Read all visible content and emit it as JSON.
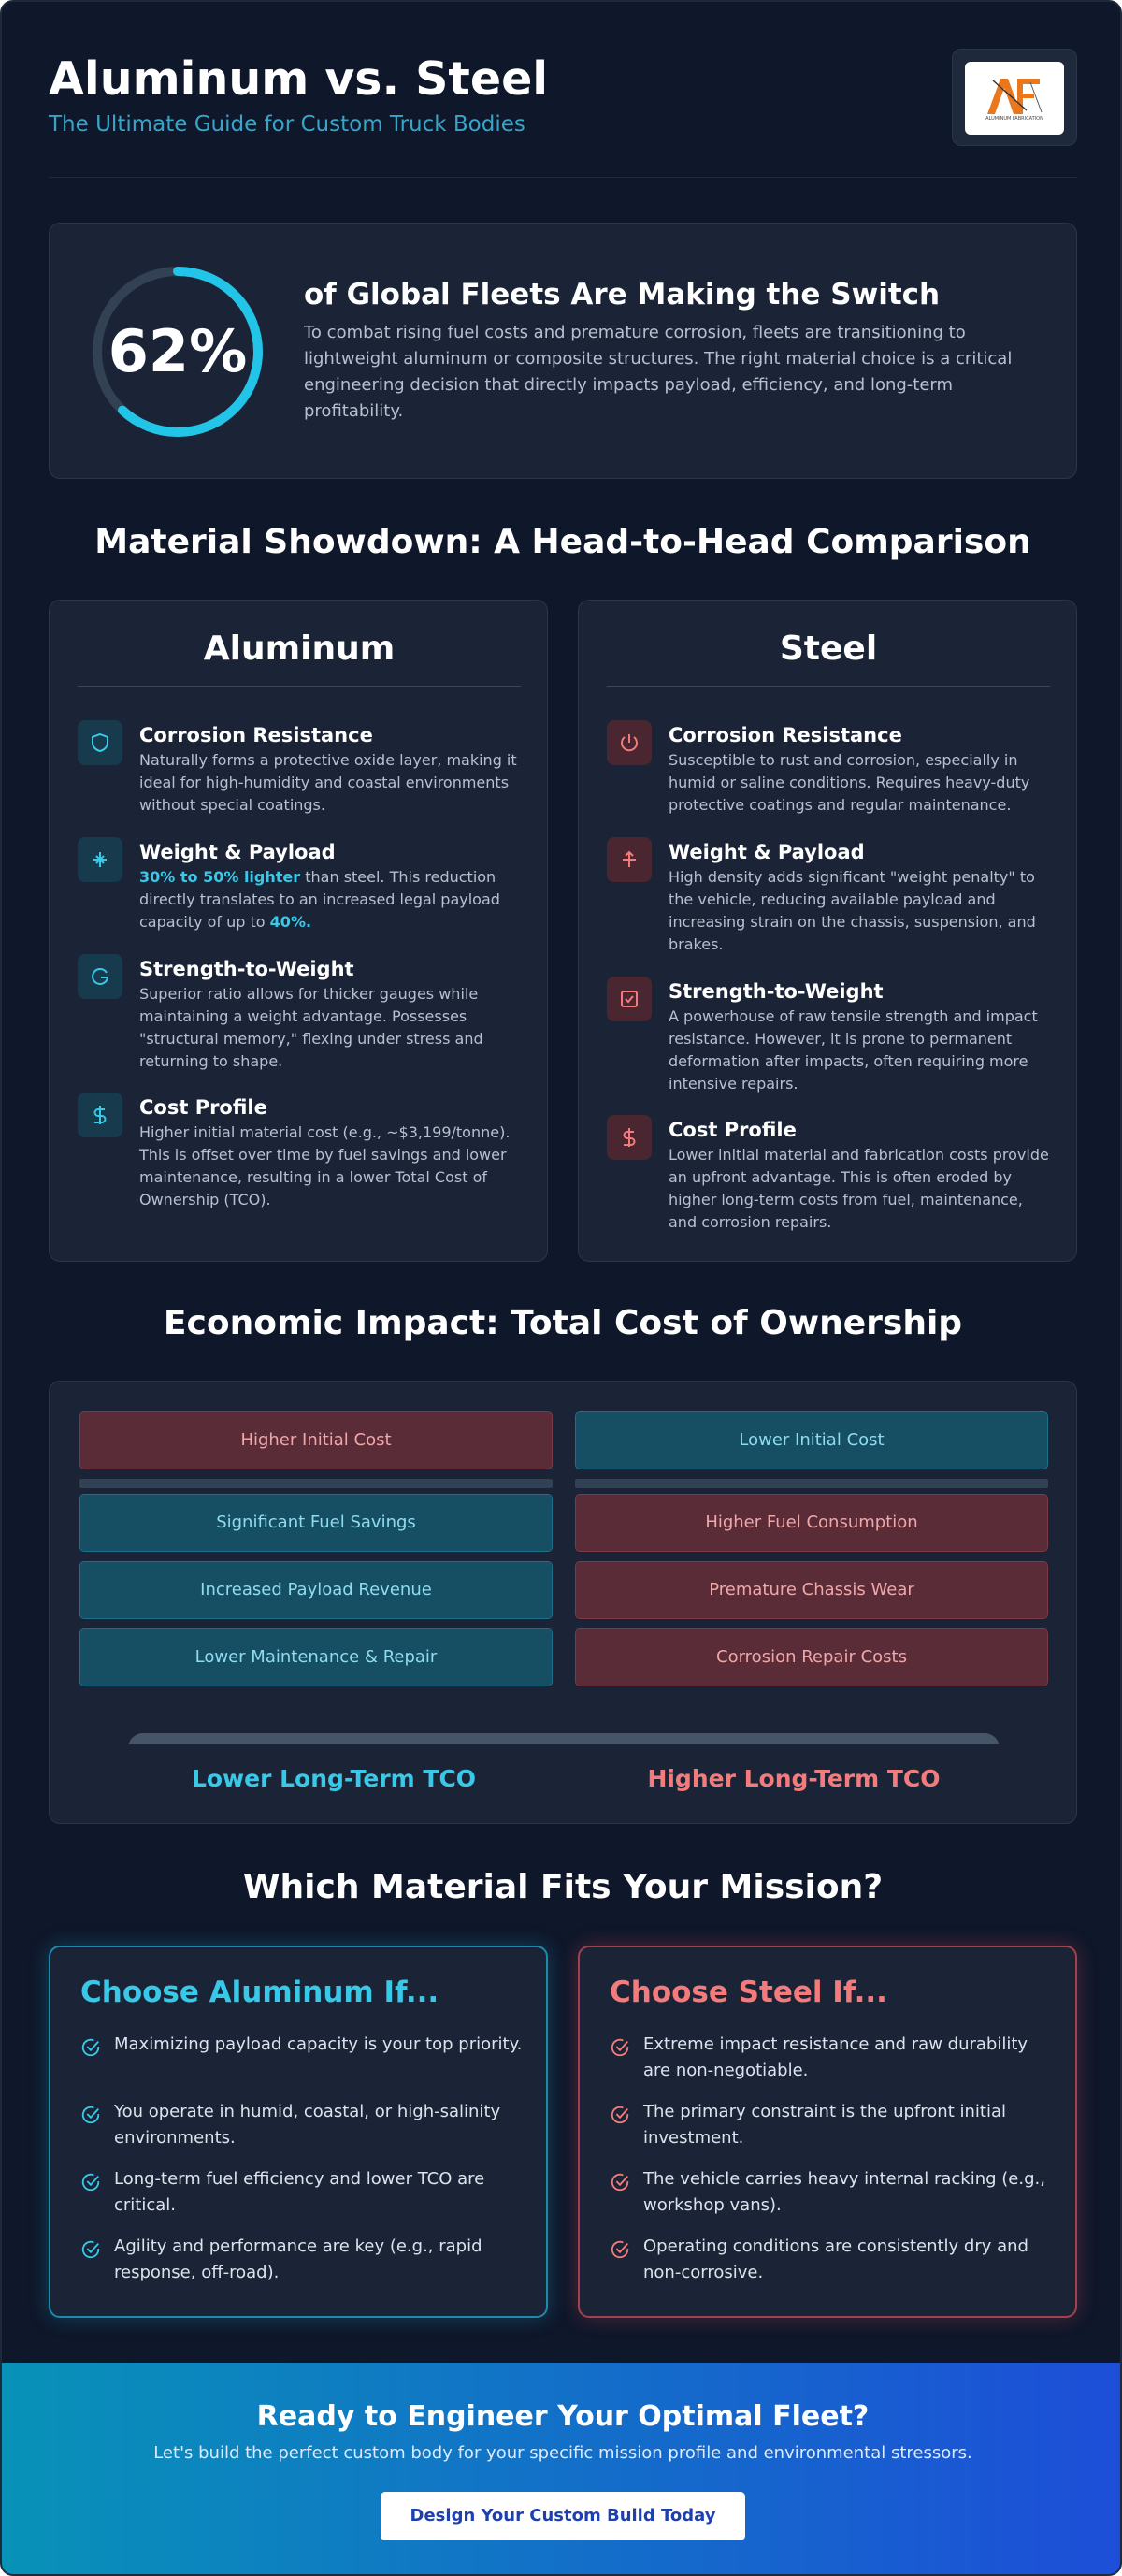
{
  "header": {
    "title": "Aluminum vs. Steel",
    "subtitle": "The Ultimate Guide for Custom Truck Bodies",
    "logo": {
      "text": "AF",
      "caption": "ALUMINUM FABRICATION"
    }
  },
  "stat": {
    "percent_label": "62%",
    "percent_value": 62,
    "headline": "of Global Fleets Are Making the Switch",
    "body": "To combat rising fuel costs and premature corrosion, fleets are transitioning to lightweight aluminum or composite structures. The right material choice is a critical engineering decision that directly impacts payload, efficiency, and long-term profitability."
  },
  "showdown": {
    "title": "Material Showdown: A Head-to-Head Comparison",
    "aluminum": {
      "title": "Aluminum",
      "features": [
        {
          "icon": "shield-icon",
          "title": "Corrosion Resistance",
          "text": "Naturally forms a protective oxide layer, making it ideal for high-humidity and coastal environments without special coatings."
        },
        {
          "icon": "feather-icon",
          "title": "Weight & Payload",
          "text_highlight": "30% to 50% lighter",
          "text_before": " than steel. This reduction directly translates to an increased legal payload capacity of up to ",
          "text_highlight2": "40%."
        },
        {
          "icon": "flex-icon",
          "title": "Strength-to-Weight",
          "text": "Superior ratio allows for thicker gauges while maintaining a weight advantage. Possesses \"structural memory,\" flexing under stress and returning to shape."
        },
        {
          "icon": "dollar-icon",
          "title": "Cost Profile",
          "text": "Higher initial material cost (e.g., ~$3,199/tonne). This is offset over time by fuel savings and lower maintenance, resulting in a lower Total Cost of Ownership (TCO)."
        }
      ]
    },
    "steel": {
      "title": "Steel",
      "features": [
        {
          "icon": "power-icon",
          "title": "Corrosion Resistance",
          "text": "Susceptible to rust and corrosion, especially in humid or saline conditions. Requires heavy-duty protective coatings and regular maintenance."
        },
        {
          "icon": "weight-icon",
          "title": "Weight & Payload",
          "text": "High density adds significant \"weight penalty\" to the vehicle, reducing available payload and increasing strain on the chassis, suspension, and brakes."
        },
        {
          "icon": "check-square-icon",
          "title": "Strength-to-Weight",
          "text": "A powerhouse of raw tensile strength and impact resistance. However, it is prone to permanent deformation after impacts, often requiring more intensive repairs."
        },
        {
          "icon": "dollar-icon",
          "title": "Cost Profile",
          "text": "Lower initial material and fabrication costs provide an upfront advantage. This is often eroded by higher long-term costs from fuel, maintenance, and corrosion repairs."
        }
      ]
    }
  },
  "tco": {
    "title": "Economic Impact: Total Cost of Ownership",
    "left": {
      "top": "Higher Initial Cost",
      "items": [
        "Significant Fuel Savings",
        "Increased Payload Revenue",
        "Lower Maintenance & Repair"
      ],
      "result": "Lower Long-Term TCO"
    },
    "right": {
      "top": "Lower Initial Cost",
      "items": [
        "Higher Fuel Consumption",
        "Premature Chassis Wear",
        "Corrosion Repair Costs"
      ],
      "result": "Higher Long-Term TCO"
    },
    "colors": {
      "cyan": "#38c8e8",
      "red": "#f47b7b"
    }
  },
  "mission": {
    "title": "Which Material Fits Your Mission?",
    "aluminum": {
      "title": "Choose Aluminum If...",
      "items": [
        "Maximizing payload capacity is your top priority.",
        "You operate in humid, coastal, or high-salinity environments.",
        "Long-term fuel efficiency and lower TCO are critical.",
        "Agility and performance are key (e.g., rapid response, off-road)."
      ]
    },
    "steel": {
      "title": "Choose Steel If...",
      "items": [
        "Extreme impact resistance and raw durability are non-negotiable.",
        "The primary constraint is the upfront initial investment.",
        "The vehicle carries heavy internal racking (e.g., workshop vans).",
        "Operating conditions are consistently dry and non-corrosive."
      ]
    }
  },
  "cta": {
    "title": "Ready to Engineer Your Optimal Fleet?",
    "subtitle": "Let's build the perfect custom body for your specific mission profile and environmental stressors.",
    "button": "Design Your Custom Build Today"
  }
}
